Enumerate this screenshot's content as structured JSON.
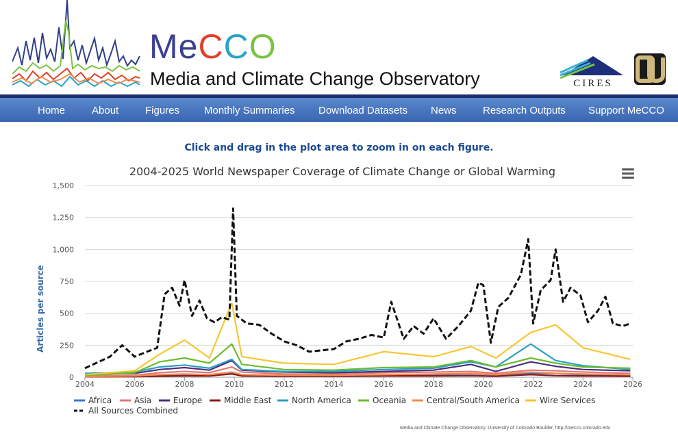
{
  "header": {
    "brand": {
      "m": "M",
      "e": "e",
      "c1": "C",
      "c2": "C",
      "o": "O"
    },
    "subtitle": "Media and Climate Change Observatory",
    "cires_text": "CIRES"
  },
  "nav": {
    "items": [
      "Home",
      "About",
      "Figures",
      "Monthly Summaries",
      "Download Datasets",
      "News",
      "Research Outputs",
      "Support MeCCO"
    ]
  },
  "zoom_hint": "Click and drag in the plot area to zoom in on each figure.",
  "credit": "Media and Climate Change Observatory, University of Colorado Boulder, http://mecco.colorado.edu",
  "colors": {
    "nav_bg": "#4a78c2",
    "nav_border": "#1b2f6e",
    "hint": "#1b4a8f"
  },
  "chart_data": {
    "type": "line",
    "title": "2004-2025 World Newspaper Coverage of Climate Change or Global Warming",
    "ylabel": "Articles per source",
    "xlabel": "",
    "xlim": [
      2004,
      2026
    ],
    "ylim": [
      0,
      1500
    ],
    "xticks": [
      2004,
      2006,
      2008,
      2010,
      2012,
      2014,
      2016,
      2018,
      2020,
      2022,
      2024,
      2026
    ],
    "yticks": [
      0,
      250,
      500,
      750,
      1000,
      1250,
      1500
    ],
    "ytick_labels": [
      "0",
      "250",
      "500",
      "750",
      "1,000",
      "1,250",
      "1,500"
    ],
    "grid": true,
    "legend_position": "bottom-left",
    "series": [
      {
        "name": "Africa",
        "color": "#3a78c8",
        "dash": false,
        "x": [
          2004,
          2006,
          2007,
          2008,
          2009,
          2009.9,
          2010.3,
          2012,
          2014,
          2016,
          2018,
          2019.5,
          2020.5,
          2021.9,
          2022.9,
          2024,
          2025.9
        ],
        "y": [
          5,
          8,
          12,
          15,
          18,
          30,
          15,
          12,
          12,
          18,
          20,
          25,
          20,
          30,
          28,
          20,
          15
        ]
      },
      {
        "name": "Asia",
        "color": "#e07878",
        "dash": false,
        "x": [
          2004,
          2006,
          2007,
          2008,
          2009,
          2009.9,
          2010.3,
          2012,
          2014,
          2016,
          2018,
          2019.5,
          2020.5,
          2021.9,
          2022.9,
          2024,
          2025.9
        ],
        "y": [
          10,
          15,
          35,
          45,
          35,
          80,
          40,
          25,
          25,
          35,
          40,
          45,
          30,
          55,
          50,
          40,
          30
        ]
      },
      {
        "name": "Europe",
        "color": "#4b2f7e",
        "dash": false,
        "x": [
          2004,
          2006,
          2007,
          2008,
          2009,
          2009.9,
          2010.3,
          2012,
          2014,
          2016,
          2018,
          2019.5,
          2020.5,
          2021.9,
          2022.9,
          2024,
          2025.9
        ],
        "y": [
          25,
          30,
          60,
          75,
          55,
          130,
          55,
          40,
          35,
          45,
          55,
          100,
          45,
          120,
          85,
          60,
          50
        ]
      },
      {
        "name": "Middle East",
        "color": "#8b1a1a",
        "dash": false,
        "x": [
          2004,
          2006,
          2007,
          2008,
          2009,
          2009.9,
          2010.3,
          2012,
          2014,
          2016,
          2018,
          2019.5,
          2020.5,
          2021.9,
          2022.9,
          2024,
          2025.9
        ],
        "y": [
          3,
          5,
          8,
          10,
          10,
          25,
          10,
          8,
          8,
          10,
          10,
          12,
          8,
          20,
          12,
          10,
          8
        ]
      },
      {
        "name": "North America",
        "color": "#2a9fc4",
        "dash": false,
        "x": [
          2004,
          2006,
          2007,
          2008,
          2009,
          2009.9,
          2010.3,
          2012,
          2014,
          2016,
          2018,
          2019.5,
          2020.5,
          2021.9,
          2022.9,
          2024,
          2025.9
        ],
        "y": [
          30,
          40,
          80,
          95,
          70,
          140,
          60,
          45,
          45,
          60,
          70,
          120,
          80,
          260,
          130,
          90,
          60
        ]
      },
      {
        "name": "Oceania",
        "color": "#6cbb30",
        "dash": false,
        "x": [
          2004,
          2006,
          2007,
          2008,
          2009,
          2009.9,
          2010.3,
          2012,
          2014,
          2016,
          2018,
          2019.5,
          2020.5,
          2021.9,
          2022.9,
          2024,
          2025.9
        ],
        "y": [
          15,
          35,
          120,
          150,
          110,
          260,
          100,
          60,
          55,
          75,
          80,
          130,
          80,
          150,
          110,
          80,
          70
        ]
      },
      {
        "name": "Central/South America",
        "color": "#f08a4b",
        "dash": false,
        "x": [
          2004,
          2006,
          2007,
          2008,
          2009,
          2009.9,
          2010.3,
          2012,
          2014,
          2016,
          2018,
          2019.5,
          2020.5,
          2021.9,
          2022.9,
          2024,
          2025.9
        ],
        "y": [
          5,
          10,
          20,
          25,
          20,
          40,
          20,
          15,
          15,
          20,
          25,
          30,
          20,
          40,
          30,
          25,
          20
        ]
      },
      {
        "name": "Wire Services",
        "color": "#f7c630",
        "dash": false,
        "x": [
          2004,
          2006,
          2007,
          2008,
          2009,
          2009.9,
          2010.3,
          2012,
          2014,
          2016,
          2018,
          2019.5,
          2020.5,
          2021.9,
          2022.9,
          2024,
          2025.9
        ],
        "y": [
          20,
          50,
          180,
          290,
          150,
          580,
          160,
          110,
          100,
          200,
          160,
          240,
          150,
          350,
          410,
          230,
          140
        ]
      },
      {
        "name": "All Sources Combined",
        "color": "#111111",
        "dash": true,
        "x": [
          2004,
          2005,
          2005.5,
          2006,
          2006.5,
          2006.9,
          2007.2,
          2007.5,
          2007.8,
          2008,
          2008.3,
          2008.6,
          2008.9,
          2009.2,
          2009.5,
          2009.8,
          2009.95,
          2010.1,
          2010.5,
          2011,
          2011.5,
          2012,
          2012.5,
          2013,
          2013.5,
          2014,
          2014.5,
          2015,
          2015.5,
          2016,
          2016.3,
          2016.8,
          2017.2,
          2017.6,
          2018,
          2018.5,
          2019,
          2019.5,
          2019.8,
          2020,
          2020.3,
          2020.6,
          2021,
          2021.5,
          2021.8,
          2022,
          2022.3,
          2022.7,
          2022.9,
          2023.2,
          2023.5,
          2023.9,
          2024.2,
          2024.6,
          2024.9,
          2025.2,
          2025.6,
          2025.9
        ],
        "y": [
          70,
          160,
          250,
          160,
          200,
          230,
          650,
          700,
          560,
          760,
          480,
          600,
          460,
          430,
          470,
          450,
          1320,
          480,
          420,
          410,
          340,
          280,
          250,
          200,
          210,
          220,
          280,
          300,
          330,
          310,
          590,
          300,
          400,
          340,
          460,
          300,
          400,
          520,
          740,
          720,
          270,
          550,
          620,
          800,
          1080,
          420,
          680,
          760,
          1000,
          590,
          700,
          640,
          430,
          520,
          630,
          420,
          400,
          420
        ]
      }
    ]
  }
}
